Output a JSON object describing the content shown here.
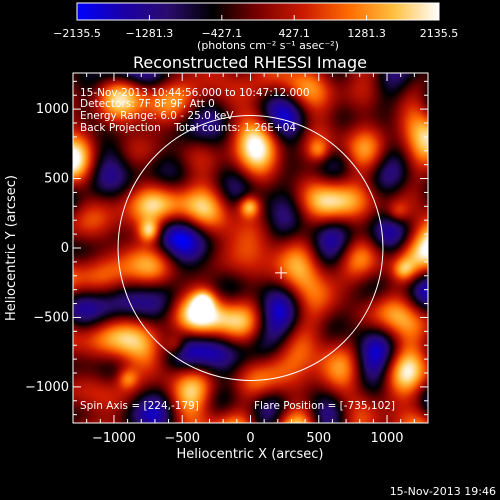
{
  "colorbar": {
    "tick_labels": [
      "-2135.5",
      "-1281.3",
      "-427.1",
      "427.1",
      "1281.3",
      "2135.5"
    ],
    "units": "(photons cm⁻² s⁻¹ asec⁻²)",
    "range": [
      -2135.5,
      2135.5
    ],
    "stops": [
      "#0000ff",
      "#1a00a8",
      "#2a0b6e",
      "#000000",
      "#7a0000",
      "#cc1a00",
      "#ff6a00",
      "#ffc040",
      "#ffffff"
    ]
  },
  "chart_data": {
    "type": "heatmap",
    "title": "Reconstructed RHESSI Image",
    "xlabel": "Heliocentric X (arcsec)",
    "ylabel": "Heliocentric Y (arcsec)",
    "xlim": [
      -1300,
      1300
    ],
    "ylim": [
      -1260,
      1260
    ],
    "x_ticks": [
      -1000,
      -500,
      0,
      500,
      1000
    ],
    "x_tick_labels": [
      "−1000",
      "−500",
      "0",
      "500",
      "1000"
    ],
    "y_ticks": [
      -1000,
      -500,
      0,
      500,
      1000
    ],
    "y_tick_labels": [
      "−1000",
      "−500",
      "0",
      "500",
      "1000"
    ],
    "solar_limb_radius_arcsec": 970,
    "spin_axis": [
      224,
      -179
    ],
    "flare_position": [
      -735,
      102
    ],
    "bright_sources": [
      {
        "x": -740,
        "y": 120,
        "v": 1800
      },
      {
        "x": -10,
        "y": 300,
        "v": 2000
      },
      {
        "x": -340,
        "y": -380,
        "v": 1300
      },
      {
        "x": -550,
        "y": -700,
        "v": 1100
      },
      {
        "x": -900,
        "y": -940,
        "v": 1200
      },
      {
        "x": 500,
        "y": 700,
        "v": 1000
      },
      {
        "x": 1120,
        "y": -160,
        "v": 1000
      },
      {
        "x": 1080,
        "y": 260,
        "v": 900
      }
    ],
    "annotations": {
      "time_range": "15-Nov-2013 10:44:56.000 to 10:47:12.000",
      "detectors": "Detectors: 7F 8F 9F, Att 0",
      "energy_range": "Energy Range: 6.0 - 25.0 keV",
      "method_counts": "Back Projection    Total counts: 1.26E+04",
      "spin_axis_label": "Spin Axis = [224,-179]",
      "flare_position_label": "Flare Position = [-735,102]"
    }
  },
  "footer": {
    "timestamp": "15-Nov-2013 19:46"
  }
}
